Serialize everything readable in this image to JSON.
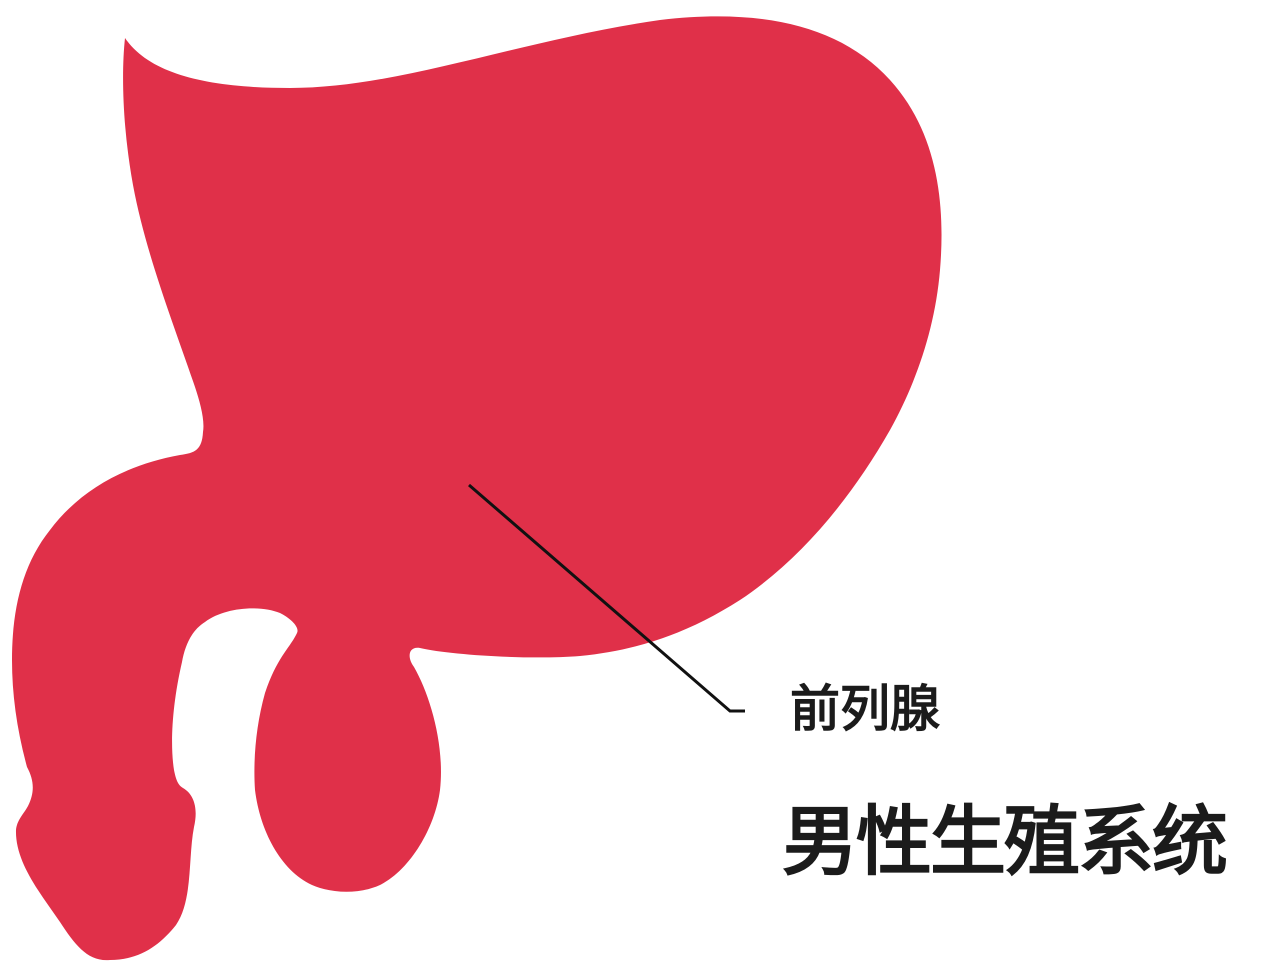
{
  "diagram": {
    "label": "前列腺",
    "title": "男性生殖系统",
    "colors": {
      "organ": "#e03049",
      "text": "#1b1b1b",
      "leader_line": "#111111",
      "background": "#ffffff"
    }
  }
}
